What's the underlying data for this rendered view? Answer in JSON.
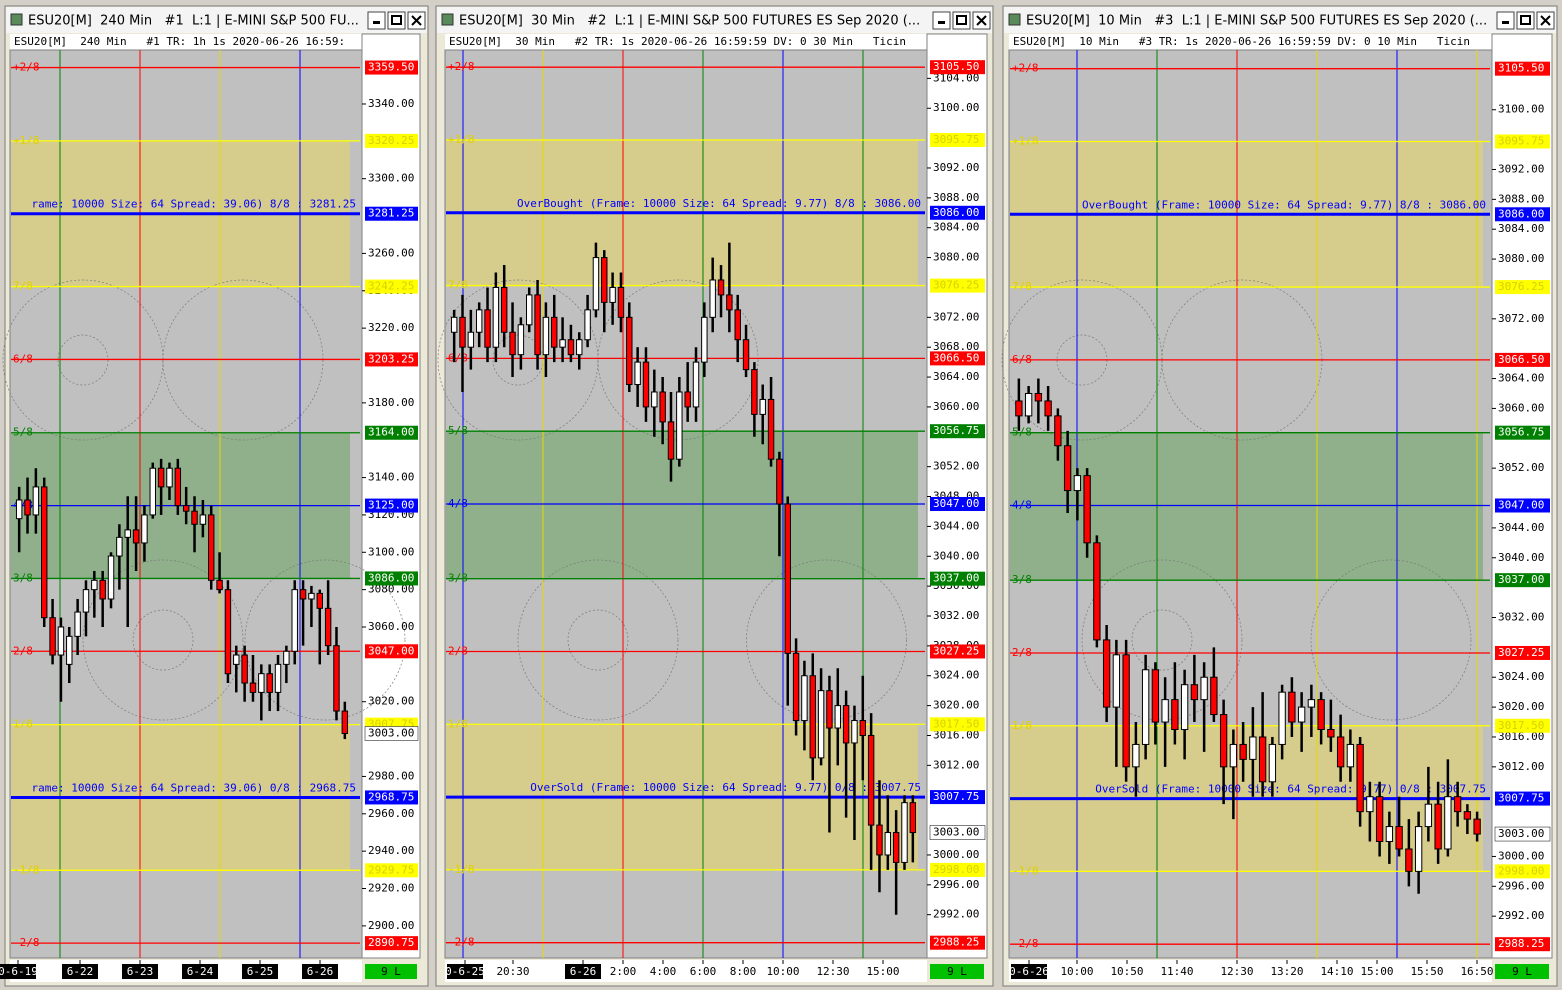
{
  "windows": [
    {
      "title": "ESU20[M]  240 Min   #1  L:1 | E-MINI S&P 500 FU...",
      "header": "ESU20[M]  240 Min   #1 TR: 1h 1s 2020-06-26 16:59:",
      "ylim": [
        2882.8,
        3368.9
      ],
      "yticks": [
        "3340.00",
        "3300.00",
        "3260.00",
        "3240.00",
        "3220.00",
        "3180.00",
        "3140.00",
        "3120.00",
        "3100.00",
        "3080.00",
        "3060.00",
        "3020.00",
        "2980.00",
        "2960.00",
        "2940.00",
        "2920.00",
        "2900.00"
      ],
      "levels": [
        {
          "label": "+2/8",
          "price": "3359.50",
          "color": "red"
        },
        {
          "label": "+1/8",
          "price": "3320.25",
          "color": "yellow"
        },
        {
          "price": "3281.25",
          "color": "blue",
          "note": "rame: 10000 Size: 64 Spread: 39.06) 8/8 : 3281.25"
        },
        {
          "label": "7/8",
          "price": "3242.25",
          "color": "yellow"
        },
        {
          "label": "6/8",
          "price": "3203.25",
          "color": "red"
        },
        {
          "label": "5/8",
          "price": "3164.00",
          "color": "green"
        },
        {
          "label": "4/8",
          "price": "3125.00",
          "color": "blue"
        },
        {
          "label": "3/8",
          "price": "3086.00",
          "color": "green"
        },
        {
          "label": "2/8",
          "price": "3047.00",
          "color": "red"
        },
        {
          "label": "1/8",
          "price": "3007.75",
          "color": "yellow"
        },
        {
          "price": "2968.75",
          "color": "blue",
          "note": "rame: 10000 Size: 64 Spread: 39.06) 0/8 : 2968.75"
        },
        {
          "label": "-1/8",
          "price": "2929.75",
          "color": "yellow"
        },
        {
          "label": "-2/8",
          "price": "2890.75",
          "color": "red"
        }
      ],
      "last": "3003.00",
      "xlabels": [
        "0-6-19",
        "6-22",
        "6-23",
        "6-24",
        "6-25",
        "6-26"
      ],
      "status": "9 L",
      "candles": [
        [
          3118,
          3135,
          3100,
          3128
        ],
        [
          3128,
          3140,
          3110,
          3120
        ],
        [
          3120,
          3145,
          3110,
          3135
        ],
        [
          3135,
          3140,
          3060,
          3065
        ],
        [
          3065,
          3075,
          3040,
          3045
        ],
        [
          3045,
          3065,
          3020,
          3060
        ],
        [
          3040,
          3060,
          3030,
          3055
        ],
        [
          3055,
          3075,
          3045,
          3068
        ],
        [
          3068,
          3085,
          3055,
          3080
        ],
        [
          3080,
          3090,
          3065,
          3085
        ],
        [
          3085,
          3090,
          3060,
          3075
        ],
        [
          3075,
          3100,
          3070,
          3098
        ],
        [
          3098,
          3115,
          3080,
          3108
        ],
        [
          3108,
          3130,
          3060,
          3112
        ],
        [
          3112,
          3130,
          3090,
          3105
        ],
        [
          3105,
          3125,
          3095,
          3120
        ],
        [
          3120,
          3148,
          3118,
          3145
        ],
        [
          3145,
          3150,
          3120,
          3135
        ],
        [
          3135,
          3148,
          3128,
          3145
        ],
        [
          3145,
          3150,
          3120,
          3125
        ],
        [
          3125,
          3135,
          3115,
          3122
        ],
        [
          3122,
          3130,
          3100,
          3115
        ],
        [
          3115,
          3128,
          3108,
          3120
        ],
        [
          3120,
          3125,
          3080,
          3085
        ],
        [
          3085,
          3100,
          3078,
          3080
        ],
        [
          3080,
          3085,
          3030,
          3035
        ],
        [
          3040,
          3050,
          3025,
          3045
        ],
        [
          3045,
          3050,
          3020,
          3030
        ],
        [
          3030,
          3045,
          3020,
          3025
        ],
        [
          3025,
          3040,
          3010,
          3035
        ],
        [
          3035,
          3040,
          3015,
          3025
        ],
        [
          3025,
          3045,
          3015,
          3040
        ],
        [
          3040,
          3050,
          3030,
          3047
        ],
        [
          3047,
          3085,
          3040,
          3080
        ],
        [
          3080,
          3085,
          3050,
          3075
        ],
        [
          3075,
          3082,
          3060,
          3078
        ],
        [
          3078,
          3080,
          3040,
          3070
        ],
        [
          3070,
          3085,
          3045,
          3050
        ],
        [
          3050,
          3060,
          3010,
          3015
        ],
        [
          3015,
          3020,
          3000,
          3003
        ]
      ]
    },
    {
      "title": "ESU20[M]  30 Min   #2  L:1 | E-MINI S&P 500 FUTURES ES Sep 2020 (...",
      "header": "ESU20[M]  30 Min   #2 TR: 1s 2020-06-26 16:59:59 DV: 0 30 Min   Ticin",
      "ylim": [
        2986.2,
        3107.8
      ],
      "yticks": [
        "3104.00",
        "3100.00",
        "3092.00",
        "3088.00",
        "3084.00",
        "3080.00",
        "3072.00",
        "3068.00",
        "3064.00",
        "3060.00",
        "3052.00",
        "3048.00",
        "3044.00",
        "3040.00",
        "3036.00",
        "3032.00",
        "3028.00",
        "3024.00",
        "3020.00",
        "3016.00",
        "3012.00",
        "3000.00",
        "2996.00",
        "2992.00"
      ],
      "levels": [
        {
          "label": "+2/8",
          "price": "3105.50",
          "color": "red"
        },
        {
          "label": "+1/8",
          "price": "3095.75",
          "color": "yellow"
        },
        {
          "price": "3086.00",
          "color": "blue",
          "note": "OverBought (Frame: 10000 Size: 64 Spread: 9.77) 8/8 : 3086.00"
        },
        {
          "label": "7/8",
          "price": "3076.25",
          "color": "yellow"
        },
        {
          "label": "6/8",
          "price": "3066.50",
          "color": "red"
        },
        {
          "label": "5/8",
          "price": "3056.75",
          "color": "green"
        },
        {
          "label": "4/8",
          "price": "3047.00",
          "color": "blue"
        },
        {
          "label": "3/8",
          "price": "3037.00",
          "color": "green"
        },
        {
          "label": "2/8",
          "price": "3027.25",
          "color": "red"
        },
        {
          "label": "1/8",
          "price": "3017.50",
          "color": "yellow"
        },
        {
          "price": "3007.75",
          "color": "blue",
          "note": "OverSold (Frame: 10000 Size: 64 Spread: 9.77) 0/8 : 3007.75"
        },
        {
          "label": "-1/8",
          "price": "2998.00",
          "color": "yellow"
        },
        {
          "label": "-2/8",
          "price": "2988.25",
          "color": "red"
        }
      ],
      "last": "3003.00",
      "xlabels": [
        "0-6-25",
        "20:30",
        "6-26",
        "2:00",
        "4:00",
        "6:00",
        "8:00",
        "10:00",
        "12:30",
        "15:00"
      ],
      "status": "9 L",
      "candles": [
        [
          3070,
          3073,
          3066,
          3072
        ],
        [
          3072,
          3075,
          3062,
          3068
        ],
        [
          3068,
          3073,
          3065,
          3070
        ],
        [
          3070,
          3074,
          3068,
          3073
        ],
        [
          3073,
          3076,
          3066,
          3068
        ],
        [
          3068,
          3078,
          3066,
          3076
        ],
        [
          3076,
          3079,
          3068,
          3070
        ],
        [
          3070,
          3074,
          3064,
          3067
        ],
        [
          3067,
          3072,
          3065,
          3071
        ],
        [
          3071,
          3076,
          3070,
          3075
        ],
        [
          3075,
          3077,
          3065,
          3067
        ],
        [
          3067,
          3074,
          3064,
          3072
        ],
        [
          3072,
          3075,
          3066,
          3068
        ],
        [
          3068,
          3072,
          3066,
          3069
        ],
        [
          3069,
          3071,
          3066,
          3067
        ],
        [
          3067,
          3070,
          3065,
          3069
        ],
        [
          3069,
          3075,
          3068,
          3073
        ],
        [
          3073,
          3082,
          3072,
          3080
        ],
        [
          3080,
          3081,
          3070,
          3074
        ],
        [
          3074,
          3078,
          3071,
          3076
        ],
        [
          3076,
          3078,
          3070,
          3072
        ],
        [
          3072,
          3074,
          3062,
          3063
        ],
        [
          3063,
          3068,
          3060,
          3066
        ],
        [
          3066,
          3068,
          3058,
          3060
        ],
        [
          3060,
          3065,
          3056,
          3062
        ],
        [
          3062,
          3064,
          3055,
          3058
        ],
        [
          3058,
          3062,
          3050,
          3053
        ],
        [
          3053,
          3064,
          3052,
          3062
        ],
        [
          3062,
          3066,
          3058,
          3060
        ],
        [
          3060,
          3068,
          3058,
          3066
        ],
        [
          3066,
          3074,
          3064,
          3072
        ],
        [
          3072,
          3080,
          3070,
          3077
        ],
        [
          3077,
          3079,
          3072,
          3075
        ],
        [
          3075,
          3082,
          3070,
          3073
        ],
        [
          3073,
          3075,
          3066,
          3069
        ],
        [
          3069,
          3071,
          3064,
          3065
        ],
        [
          3065,
          3066,
          3056,
          3059
        ],
        [
          3059,
          3063,
          3055,
          3061
        ],
        [
          3061,
          3064,
          3052,
          3053
        ],
        [
          3053,
          3054,
          3040,
          3047
        ],
        [
          3047,
          3048,
          3020,
          3027
        ],
        [
          3027,
          3029,
          3016,
          3018
        ],
        [
          3018,
          3026,
          3014,
          3024
        ],
        [
          3024,
          3027,
          3010,
          3013
        ],
        [
          3013,
          3025,
          3012,
          3022
        ],
        [
          3022,
          3024,
          3003,
          3017
        ],
        [
          3017,
          3025,
          3012,
          3020
        ],
        [
          3020,
          3022,
          3005,
          3015
        ],
        [
          3015,
          3020,
          3002,
          3018
        ],
        [
          3018,
          3024,
          3010,
          3016
        ],
        [
          3016,
          3019,
          2998,
          3004
        ],
        [
          3004,
          3010,
          2995,
          3000
        ],
        [
          3000,
          3008,
          2998,
          3003
        ],
        [
          3003,
          3006,
          2992,
          2999
        ],
        [
          2999,
          3008,
          2998,
          3007
        ],
        [
          3007,
          3008,
          2999,
          3003
        ]
      ]
    },
    {
      "title": "ESU20[M]  10 Min   #3  L:1 | E-MINI S&P 500 FUTURES ES Sep 2020 (...",
      "header": "ESU20[M]  10 Min   #3 TR: 1s 2020-06-26 16:59:59 DV: 0 10 Min   Ticin",
      "ylim": [
        2986.4,
        3108.0
      ],
      "yticks": [
        "3100.00",
        "3092.00",
        "3088.00",
        "3084.00",
        "3080.00",
        "3072.00",
        "3064.00",
        "3060.00",
        "3052.00",
        "3044.00",
        "3040.00",
        "3032.00",
        "3024.00",
        "3020.00",
        "3016.00",
        "3012.00",
        "3000.00",
        "2996.00",
        "2992.00"
      ],
      "levels": [
        {
          "label": "+2/8",
          "price": "3105.50",
          "color": "red"
        },
        {
          "label": "+1/8",
          "price": "3095.75",
          "color": "yellow"
        },
        {
          "price": "3086.00",
          "color": "blue",
          "note": "OverBought (Frame: 10000 Size: 64 Spread: 9.77) 8/8 : 3086.00"
        },
        {
          "label": "7/8",
          "price": "3076.25",
          "color": "yellow"
        },
        {
          "label": "6/8",
          "price": "3066.50",
          "color": "red"
        },
        {
          "label": "5/8",
          "price": "3056.75",
          "color": "green"
        },
        {
          "label": "4/8",
          "price": "3047.00",
          "color": "blue"
        },
        {
          "label": "3/8",
          "price": "3037.00",
          "color": "green"
        },
        {
          "label": "2/8",
          "price": "3027.25",
          "color": "red"
        },
        {
          "label": "1/8",
          "price": "3017.50",
          "color": "yellow"
        },
        {
          "price": "3007.75",
          "color": "blue",
          "note": "OverSold (Frame: 10000 Size: 64 Spread: 9.77) 0/8 : 3007.75"
        },
        {
          "label": "-1/8",
          "price": "2998.00",
          "color": "yellow"
        },
        {
          "label": "-2/8",
          "price": "2988.25",
          "color": "red"
        }
      ],
      "last": "3003.00",
      "xlabels": [
        "0-6-26",
        "10:00",
        "10:50",
        "11:40",
        "12:30",
        "13:20",
        "14:10",
        "15:00",
        "15:50",
        "16:50"
      ],
      "status": "9 L",
      "candles": [
        [
          3061,
          3064,
          3057,
          3059
        ],
        [
          3059,
          3063,
          3058,
          3062
        ],
        [
          3062,
          3064,
          3058,
          3061
        ],
        [
          3061,
          3063,
          3057,
          3059
        ],
        [
          3059,
          3060,
          3053,
          3055
        ],
        [
          3055,
          3057,
          3046,
          3049
        ],
        [
          3049,
          3052,
          3045,
          3051
        ],
        [
          3051,
          3052,
          3040,
          3042
        ],
        [
          3042,
          3043,
          3028,
          3029
        ],
        [
          3029,
          3031,
          3018,
          3020
        ],
        [
          3020,
          3029,
          3012,
          3027
        ],
        [
          3027,
          3029,
          3010,
          3012
        ],
        [
          3012,
          3018,
          3008,
          3015
        ],
        [
          3015,
          3027,
          3013,
          3025
        ],
        [
          3025,
          3026,
          3015,
          3018
        ],
        [
          3018,
          3024,
          3012,
          3021
        ],
        [
          3021,
          3026,
          3015,
          3017
        ],
        [
          3017,
          3025,
          3013,
          3023
        ],
        [
          3023,
          3027,
          3018,
          3021
        ],
        [
          3021,
          3026,
          3014,
          3024
        ],
        [
          3024,
          3028,
          3018,
          3019
        ],
        [
          3019,
          3021,
          3007,
          3012
        ],
        [
          3012,
          3017,
          3005,
          3015
        ],
        [
          3015,
          3018,
          3010,
          3013
        ],
        [
          3013,
          3020,
          3008,
          3016
        ],
        [
          3016,
          3022,
          3008,
          3010
        ],
        [
          3010,
          3016,
          3008,
          3015
        ],
        [
          3015,
          3023,
          3013,
          3022
        ],
        [
          3022,
          3024,
          3016,
          3018
        ],
        [
          3018,
          3022,
          3014,
          3020
        ],
        [
          3020,
          3023,
          3016,
          3021
        ],
        [
          3021,
          3022,
          3015,
          3017
        ],
        [
          3017,
          3021,
          3014,
          3016
        ],
        [
          3016,
          3019,
          3010,
          3012
        ],
        [
          3012,
          3017,
          3010,
          3015
        ],
        [
          3015,
          3016,
          3004,
          3006
        ],
        [
          3006,
          3010,
          3002,
          3008
        ],
        [
          3008,
          3010,
          3000,
          3002
        ],
        [
          3002,
          3006,
          2999,
          3004
        ],
        [
          3004,
          3008,
          3000,
          3001
        ],
        [
          3001,
          3005,
          2996,
          2998
        ],
        [
          2998,
          3006,
          2995,
          3004
        ],
        [
          3004,
          3012,
          3002,
          3007
        ],
        [
          3007,
          3010,
          2999,
          3001
        ],
        [
          3001,
          3013,
          3000,
          3008
        ],
        [
          3008,
          3010,
          3004,
          3006
        ],
        [
          3006,
          3007,
          3003,
          3005
        ],
        [
          3005,
          3006,
          3002,
          3003
        ]
      ]
    }
  ]
}
